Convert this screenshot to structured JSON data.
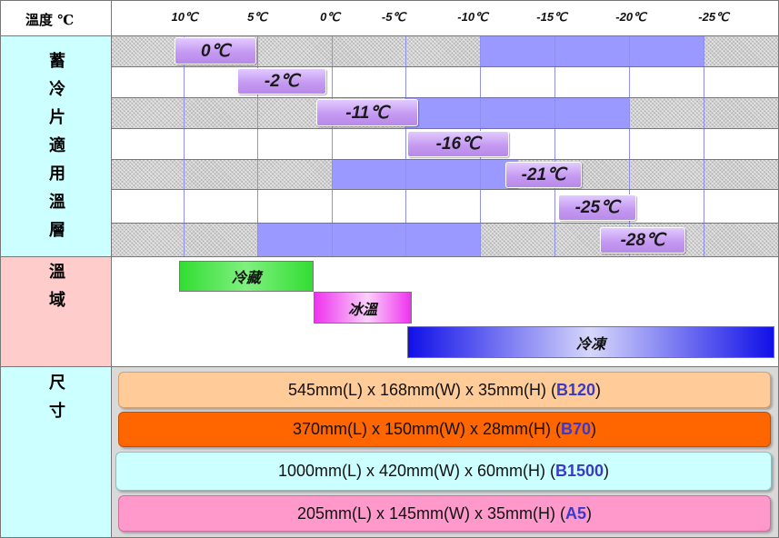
{
  "header": {
    "title": "溫度 ℃",
    "ticks": [
      "10℃",
      "5℃",
      "0℃",
      "-5℃",
      "-10℃",
      "-15℃",
      "-20℃",
      "-25℃"
    ]
  },
  "sections": {
    "layer_label": [
      "蓄",
      "冷",
      "片",
      "適",
      "用",
      "溫",
      "層"
    ],
    "zone_label": [
      "溫",
      "域"
    ],
    "size_label": [
      "尺",
      "寸"
    ]
  },
  "pills": [
    "0℃",
    "-2℃",
    "-11℃",
    "-16℃",
    "-21℃",
    "-25℃",
    "-28℃"
  ],
  "zones": {
    "chill": "冷藏",
    "ice_temp": "冰溫",
    "freeze": "冷凍"
  },
  "sizes": [
    {
      "text": "545mm(L) x 168mm(W) x 35mm(H) (",
      "code": "B120",
      "close": ")"
    },
    {
      "text": "370mm(L) x 150mm(W) x 28mm(H) (",
      "code": "B70",
      "close": ")"
    },
    {
      "text": "1000mm(L) x 420mm(W) x 60mm(H)  (",
      "code": "B1500",
      "close": ")"
    },
    {
      "text": "205mm(L) x 145mm(W) x 35mm(H) (",
      "code": "A5",
      "close": ")"
    }
  ],
  "colors": {
    "left_column": "#ccffff",
    "zone_label_bg": "#ffcccc",
    "range_bar": "#9999ff",
    "chill": "#33dd33",
    "ice_temp": "#ee33ee",
    "freeze": "#2222ee",
    "size_1": "#ffcc99",
    "size_2": "#ff6600",
    "size_3": "#ccffff",
    "size_4": "#ff99cc",
    "code_text": "#3a3ac8"
  }
}
